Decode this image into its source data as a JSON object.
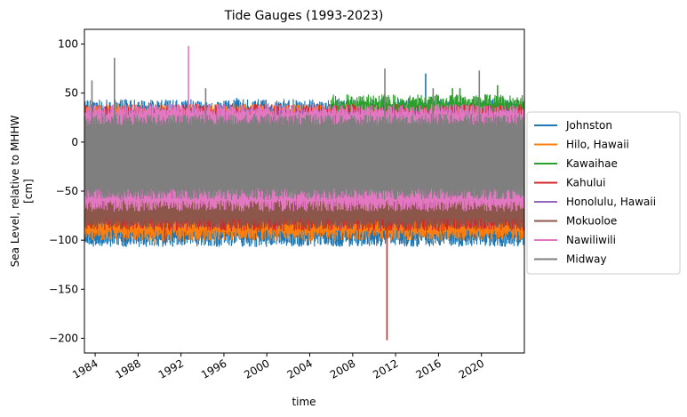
{
  "chart_data": {
    "type": "line",
    "title": "Tide Gauges (1993-2023)",
    "xlabel": "time",
    "ylabel_lines": [
      "Sea Level, relative to MHHW",
      "[cm]"
    ],
    "xlim": [
      1983.0,
      2024.0
    ],
    "ylim": [
      -215,
      115
    ],
    "x_ticks": [
      1984,
      1988,
      1992,
      1996,
      2000,
      2004,
      2008,
      2012,
      2016,
      2020
    ],
    "y_ticks": [
      100,
      50,
      0,
      -50,
      -100,
      -150,
      -200
    ],
    "grid": false,
    "legend_position": "right-outside",
    "series": [
      {
        "name": "Johnston",
        "color": "#1f77b4",
        "x_range": [
          1983.0,
          2024.0
        ],
        "envelope_low": -98,
        "envelope_high": 35,
        "spikes": [
          [
            1985.8,
            42
          ],
          [
            1997.2,
            45
          ],
          [
            2014.8,
            70
          ],
          [
            2017.2,
            -105
          ],
          [
            2015.0,
            -103
          ]
        ]
      },
      {
        "name": "Hilo, Hawaii",
        "color": "#ff7f0e",
        "x_range": [
          1983.0,
          2024.0
        ],
        "envelope_low": -92,
        "envelope_high": 30,
        "spikes": [
          [
            1989.5,
            -103
          ],
          [
            2006.5,
            -95
          ]
        ]
      },
      {
        "name": "Kawaihae",
        "color": "#2ca02c",
        "x_range": [
          2006.0,
          2024.0
        ],
        "envelope_low": -70,
        "envelope_high": 40,
        "spikes": [
          [
            2018.0,
            55
          ],
          [
            2021.5,
            58
          ],
          [
            2017.3,
            55
          ]
        ]
      },
      {
        "name": "Kahului",
        "color": "#d62728",
        "x_range": [
          1983.0,
          2024.0
        ],
        "envelope_low": -82,
        "envelope_high": 30,
        "spikes": [
          [
            2011.2,
            -202
          ],
          [
            1990.5,
            -103
          ]
        ]
      },
      {
        "name": "Honolulu, Hawaii",
        "color": "#9467bd",
        "x_range": [
          1983.0,
          2024.0
        ],
        "envelope_low": -70,
        "envelope_high": 25,
        "spikes": []
      },
      {
        "name": "Mokuoloe",
        "color": "#8c564b",
        "x_range": [
          1983.0,
          2024.0
        ],
        "envelope_low": -80,
        "envelope_high": 20,
        "spikes": []
      },
      {
        "name": "Nawiliwili",
        "color": "#e377c2",
        "x_range": [
          1983.0,
          2024.0
        ],
        "envelope_low": -62,
        "envelope_high": 30,
        "spikes": [
          [
            1992.7,
            98
          ]
        ]
      },
      {
        "name": "Midway",
        "color": "#7f7f7f",
        "x_range": [
          1983.0,
          2024.0
        ],
        "envelope_low": -50,
        "envelope_high": 20,
        "spikes": [
          [
            1983.7,
            63
          ],
          [
            1985.8,
            86
          ],
          [
            1994.3,
            55
          ],
          [
            2011.0,
            75
          ],
          [
            2019.8,
            73
          ],
          [
            2015.5,
            55
          ]
        ]
      }
    ]
  }
}
